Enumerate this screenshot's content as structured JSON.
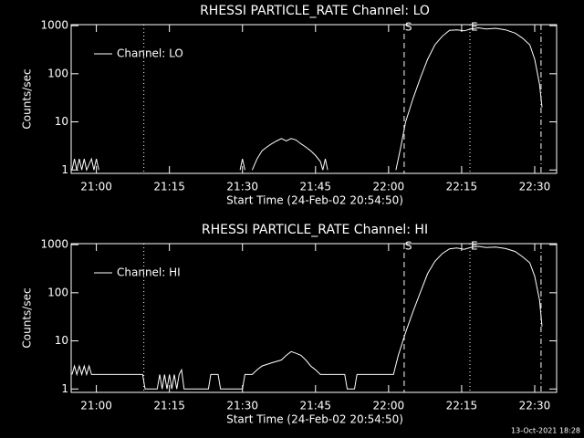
{
  "footer": "13-Oct-2021 18:28",
  "chart_data": [
    {
      "type": "line",
      "title": "RHESSI PARTICLE_RATE Channel: LO",
      "x_label": "Start Time (24-Feb-02 20:54:50)",
      "y_label": "Counts/sec",
      "log_y": true,
      "legend": "upper left",
      "xlim": [
        1254.83,
        1354.5
      ],
      "ylim": [
        0.85,
        1050
      ],
      "xticks": [
        {
          "value": 1260,
          "label": "21:00"
        },
        {
          "value": 1275,
          "label": "21:15"
        },
        {
          "value": 1290,
          "label": "21:30"
        },
        {
          "value": 1305,
          "label": "21:45"
        },
        {
          "value": 1320,
          "label": "22:00"
        },
        {
          "value": 1335,
          "label": "22:15"
        },
        {
          "value": 1350,
          "label": "22:30"
        }
      ],
      "yticks": [
        1,
        10,
        100,
        1000
      ],
      "annotations": [
        {
          "x": 1269.75,
          "style": "dotted"
        },
        {
          "x": 1323.2,
          "style": "dashed",
          "label": "S"
        },
        {
          "x": 1336.7,
          "style": "dotted",
          "label": "E"
        },
        {
          "x": 1351.3,
          "style": "dashdot"
        }
      ],
      "series": [
        {
          "name": "Channel: LO",
          "color": "#ffffff",
          "x": [
            1255,
            1255.5,
            1256,
            1256.5,
            1257,
            1257.5,
            1258,
            1259,
            1259.5,
            1260,
            1260.5,
            1261,
            1289.5,
            1290,
            1290.5,
            1291,
            1292,
            1293,
            1294,
            1295,
            1296,
            1297,
            1298,
            1299,
            1300,
            1301,
            1302,
            1303,
            1304,
            1305,
            1306,
            1306.5,
            1307,
            1307.5,
            1308,
            1321.5,
            1322.5,
            1323.5,
            1325,
            1326.5,
            1328,
            1329.5,
            1331,
            1332.5,
            1334,
            1335.5,
            1337,
            1338.5,
            1340,
            1342,
            1344,
            1346,
            1347.5,
            1349,
            1350,
            1351,
            1351.5
          ],
          "values": [
            1,
            1.7,
            1,
            1.7,
            1,
            1.7,
            1,
            1.7,
            1,
            1.7,
            1,
            null,
            1,
            1.7,
            1,
            null,
            1,
            1.7,
            2.5,
            3,
            3.5,
            4,
            4.5,
            4,
            4.5,
            4.2,
            3.5,
            3,
            2.5,
            2,
            1.5,
            1,
            1.7,
            1,
            null,
            1,
            3,
            10,
            30,
            80,
            200,
            400,
            600,
            800,
            820,
            780,
            860,
            900,
            850,
            880,
            820,
            700,
            550,
            400,
            200,
            60,
            20
          ]
        }
      ]
    },
    {
      "type": "line",
      "title": "RHESSI PARTICLE_RATE Channel: HI",
      "x_label": "Start Time (24-Feb-02 20:54:50)",
      "y_label": "Counts/sec",
      "log_y": true,
      "legend": "upper left",
      "xlim": [
        1254.83,
        1354.5
      ],
      "ylim": [
        0.85,
        1050
      ],
      "xticks": [
        {
          "value": 1260,
          "label": "21:00"
        },
        {
          "value": 1275,
          "label": "21:15"
        },
        {
          "value": 1290,
          "label": "21:30"
        },
        {
          "value": 1305,
          "label": "21:45"
        },
        {
          "value": 1320,
          "label": "22:00"
        },
        {
          "value": 1335,
          "label": "22:15"
        },
        {
          "value": 1350,
          "label": "22:30"
        }
      ],
      "yticks": [
        1,
        10,
        100,
        1000
      ],
      "annotations": [
        {
          "x": 1269.75,
          "style": "dotted"
        },
        {
          "x": 1323.2,
          "style": "dashed",
          "label": "S"
        },
        {
          "x": 1336.7,
          "style": "dotted",
          "label": "E"
        },
        {
          "x": 1351.3,
          "style": "dashdot"
        }
      ],
      "series": [
        {
          "name": "Channel: HI",
          "color": "#ffffff",
          "x": [
            1255,
            1255.5,
            1256,
            1256.5,
            1257,
            1257.5,
            1258,
            1258.5,
            1259,
            1269.5,
            1270,
            1272.5,
            1273,
            1273.5,
            1274,
            1274.5,
            1275,
            1275.5,
            1276,
            1276.5,
            1277,
            1277.5,
            1278,
            1283,
            1283.5,
            1285,
            1285.5,
            1290,
            1290.5,
            1292,
            1293,
            1294,
            1296,
            1298,
            1299,
            1300,
            1301,
            1302,
            1303,
            1304,
            1305,
            1306,
            1308,
            1311,
            1311.5,
            1313,
            1313.5,
            1321,
            1322,
            1323.5,
            1325,
            1326.5,
            1328,
            1329.5,
            1331,
            1332.5,
            1334,
            1335.5,
            1337,
            1338.5,
            1340,
            1342,
            1344,
            1346,
            1347.5,
            1349,
            1350,
            1351,
            1351.5
          ],
          "values": [
            2,
            3,
            2,
            3,
            2,
            3,
            2,
            3,
            2,
            2,
            1,
            1,
            2,
            1,
            2,
            1,
            2,
            1,
            2,
            1,
            2,
            2.5,
            1,
            1,
            2,
            2,
            1,
            1,
            2,
            2,
            2.5,
            3,
            3.5,
            4,
            5,
            6,
            5.5,
            5,
            4,
            3,
            2.5,
            2,
            2,
            2,
            1,
            1,
            2,
            2,
            5,
            15,
            40,
            100,
            250,
            450,
            650,
            820,
            850,
            800,
            880,
            920,
            870,
            890,
            830,
            720,
            560,
            420,
            220,
            70,
            20
          ]
        }
      ]
    }
  ]
}
